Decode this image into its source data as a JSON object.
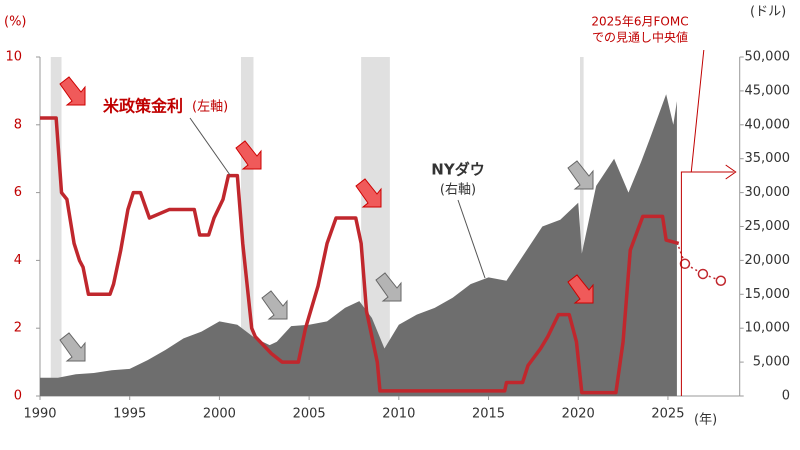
{
  "chart_data": {
    "type": "combo",
    "y_unit": "(%)",
    "y2_unit": "(ドル)",
    "x_unit": "(年)",
    "xlim": [
      1990,
      2029
    ],
    "xticks": [
      1990,
      1995,
      2000,
      2005,
      2010,
      2015,
      2020,
      2025
    ],
    "ylim": [
      0,
      10
    ],
    "yticks": [
      0,
      2,
      4,
      6,
      8,
      10
    ],
    "y2lim": [
      0,
      50000
    ],
    "y2ticks": [
      0,
      {
        "value": 5000,
        "label": "5,000"
      },
      {
        "value": 10000,
        "label": "10,000"
      },
      {
        "value": 15000,
        "label": "15,000"
      },
      {
        "value": 20000,
        "label": "20,000"
      },
      {
        "value": 25000,
        "label": "25,000"
      },
      {
        "value": 30000,
        "label": "30,000"
      },
      {
        "value": 35000,
        "label": "35,000"
      },
      {
        "value": 40000,
        "label": "40,000"
      },
      {
        "value": 45000,
        "label": "45,000"
      },
      {
        "value": 50000,
        "label": "50,000"
      }
    ],
    "recessions": [
      [
        1990.6,
        1991.2
      ],
      [
        2001.2,
        2001.9
      ],
      [
        2007.9,
        2009.5
      ],
      [
        2020.1,
        2020.3
      ]
    ],
    "annotations": {
      "fed": "米政策金利",
      "fed_axis": "(左軸)",
      "dow": "NYダウ",
      "dow_axis": "(右軸)",
      "fomc1": "2025年6月FOMC",
      "fomc2": "での見通し中央値"
    },
    "series": [
      {
        "name": "NYダウ",
        "type": "area",
        "axis": "y2",
        "color": "#6e6e6e",
        "x": [
          1990,
          1991,
          1992,
          1993,
          1994,
          1995,
          1996,
          1997,
          1998,
          1999,
          2000,
          2001,
          2002,
          2002.8,
          2003.2,
          2004,
          2005,
          2006,
          2007,
          2007.8,
          2008.5,
          2009.2,
          2010,
          2011,
          2012,
          2013,
          2014,
          2015,
          2016,
          2017,
          2018,
          2019,
          2020,
          2020.2,
          2021,
          2022,
          2022.8,
          2023.5,
          2024,
          2024.9,
          2025.3,
          2025.5
        ],
        "values": [
          2700,
          2700,
          3200,
          3400,
          3800,
          4000,
          5300,
          6800,
          8500,
          9500,
          11000,
          10500,
          8500,
          7500,
          8000,
          10300,
          10500,
          11000,
          13000,
          14000,
          11500,
          7000,
          10500,
          12000,
          13000,
          14500,
          16500,
          17500,
          17000,
          21000,
          25000,
          26000,
          28500,
          21000,
          31000,
          35000,
          30000,
          34500,
          38000,
          44500,
          40000,
          43500
        ]
      },
      {
        "name": "米政策金利",
        "type": "line",
        "axis": "y",
        "color": "#c0272d",
        "x": [
          1990,
          1990.9,
          1991.2,
          1991.5,
          1991.9,
          1992.2,
          1992.4,
          1992.7,
          1993.9,
          1994.1,
          1994.5,
          1994.9,
          1995.2,
          1995.6,
          1995.8,
          1996.1,
          1997.2,
          1998.6,
          1998.9,
          1999.4,
          1999.7,
          2000.2,
          2000.5,
          2001,
          2001.3,
          2001.8,
          2002,
          2002.9,
          2003.5,
          2004.4,
          2004.8,
          2005.5,
          2006,
          2006.5,
          2007.6,
          2007.9,
          2008.2,
          2008.8,
          2008.95,
          2015.9,
          2016,
          2016.9,
          2017.2,
          2017.9,
          2018.3,
          2018.9,
          2019.5,
          2019.9,
          2020.2,
          2022.1,
          2022.5,
          2022.9,
          2023.6,
          2024.7,
          2024.9,
          2025.6
        ],
        "values": [
          8.2,
          8.2,
          6,
          5.8,
          4.5,
          4,
          3.8,
          3,
          3,
          3.3,
          4.3,
          5.5,
          6,
          6,
          5.7,
          5.25,
          5.5,
          5.5,
          4.75,
          4.75,
          5.25,
          5.8,
          6.5,
          6.5,
          4.5,
          2,
          1.75,
          1.25,
          1,
          1,
          2,
          3.25,
          4.5,
          5.25,
          5.25,
          4.5,
          2.5,
          1,
          0.15,
          0.15,
          0.4,
          0.4,
          0.9,
          1.4,
          1.75,
          2.4,
          2.4,
          1.6,
          0.1,
          0.1,
          1.6,
          4.3,
          5.3,
          5.3,
          4.6,
          4.5
        ]
      },
      {
        "name": "FOMC見通し",
        "type": "dots",
        "axis": "y",
        "color": "#c0272d",
        "x": [
          2025.95,
          2026.95,
          2027.95
        ],
        "values": [
          3.9,
          3.6,
          3.4
        ]
      }
    ]
  }
}
